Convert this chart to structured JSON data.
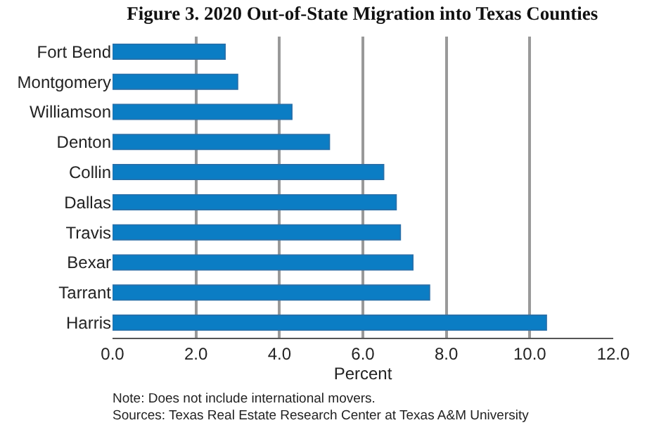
{
  "chart_data": {
    "type": "bar",
    "orientation": "horizontal",
    "title": "Figure 3. 2020 Out-of-State Migration into Texas Counties",
    "xlabel": "Percent",
    "categories": [
      "Fort Bend",
      "Montgomery",
      "Williamson",
      "Denton",
      "Collin",
      "Dallas",
      "Travis",
      "Bexar",
      "Tarrant",
      "Harris"
    ],
    "values": [
      2.7,
      3.0,
      4.3,
      5.2,
      6.5,
      6.8,
      6.9,
      7.2,
      7.6,
      10.4
    ],
    "color": "#0b7dc4",
    "xlim": [
      0,
      12
    ],
    "xticks": [
      {
        "value": 0,
        "label": "0.0"
      },
      {
        "value": 2,
        "label": "2.0"
      },
      {
        "value": 4,
        "label": "4.0"
      },
      {
        "value": 6,
        "label": "6.0"
      },
      {
        "value": 8,
        "label": "8.0"
      },
      {
        "value": 10,
        "label": "10.0"
      },
      {
        "value": 12,
        "label": "12.0"
      }
    ],
    "grid": "x",
    "annotations": [
      "Note: Does not include international movers.",
      "Sources: Texas Real Estate Research Center at Texas A&M University"
    ]
  }
}
